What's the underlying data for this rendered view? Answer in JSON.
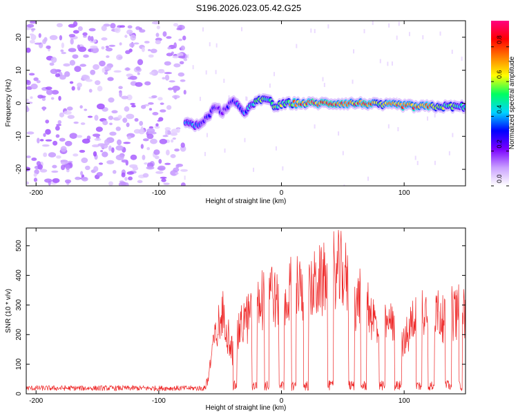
{
  "title": "S196.2026.023.05.42.G25",
  "chart_data": [
    {
      "type": "heatmap",
      "name": "spectrogram",
      "xlabel": "Height of straight line (km)",
      "ylabel": "Frequency (Hz)",
      "xlim": [
        -208,
        150
      ],
      "ylim": [
        -25,
        25
      ],
      "xticks": [
        -200,
        -100,
        0,
        100
      ],
      "yticks": [
        -20,
        -10,
        0,
        10,
        20
      ],
      "colorbar": {
        "label": "Normalized spectral amplitude",
        "range": [
          0.0,
          0.95
        ],
        "ticks": [
          0.0,
          0.2,
          0.4,
          0.6,
          0.8
        ],
        "colors": [
          "#ffffff",
          "#c9a0ff",
          "#7a00ff",
          "#0000ff",
          "#00d4ff",
          "#00ff60",
          "#ffff00",
          "#ff8000",
          "#ff0000",
          "#ff0080"
        ]
      },
      "noise_region_x": [
        -208,
        -78
      ],
      "ridge": [
        {
          "x": -78,
          "f": -5.5,
          "a": 0.4
        },
        {
          "x": -70,
          "f": -7.0,
          "a": 0.45
        },
        {
          "x": -62,
          "f": -5.0,
          "a": 0.35
        },
        {
          "x": -55,
          "f": -1.5,
          "a": 0.3
        },
        {
          "x": -48,
          "f": -2.5,
          "a": 0.3
        },
        {
          "x": -40,
          "f": 0.5,
          "a": 0.35
        },
        {
          "x": -30,
          "f": -2.5,
          "a": 0.4
        },
        {
          "x": -20,
          "f": 0.5,
          "a": 0.6
        },
        {
          "x": -12,
          "f": 1.5,
          "a": 0.55
        },
        {
          "x": -5,
          "f": -1.0,
          "a": 0.6
        },
        {
          "x": 5,
          "f": 0.0,
          "a": 0.7
        },
        {
          "x": 15,
          "f": 0.0,
          "a": 0.8
        },
        {
          "x": 25,
          "f": 0.0,
          "a": 0.9
        },
        {
          "x": 40,
          "f": 0.0,
          "a": 0.85
        },
        {
          "x": 55,
          "f": 0.0,
          "a": 0.8
        },
        {
          "x": 68,
          "f": 0.0,
          "a": 0.85
        },
        {
          "x": 80,
          "f": -0.5,
          "a": 0.75
        },
        {
          "x": 95,
          "f": -0.5,
          "a": 0.8
        },
        {
          "x": 110,
          "f": -1.0,
          "a": 0.9
        },
        {
          "x": 122,
          "f": -1.0,
          "a": 0.85
        },
        {
          "x": 135,
          "f": -1.0,
          "a": 0.6
        },
        {
          "x": 150,
          "f": -1.0,
          "a": 0.5
        }
      ]
    },
    {
      "type": "line",
      "name": "snr",
      "xlabel": "Height of straight line (km)",
      "ylabel": "SNR (10 * v/v)",
      "xlim": [
        -208,
        150
      ],
      "ylim": [
        0,
        560
      ],
      "xticks": [
        -200,
        -100,
        0,
        100
      ],
      "yticks": [
        0,
        100,
        200,
        300,
        400,
        500
      ],
      "color": "#ee2222",
      "noise_level": 20,
      "envelope": [
        {
          "x": -208,
          "y": 20
        },
        {
          "x": -65,
          "y": 25
        },
        {
          "x": -60,
          "y": 60
        },
        {
          "x": -55,
          "y": 220
        },
        {
          "x": -48,
          "y": 330
        },
        {
          "x": -40,
          "y": 200
        },
        {
          "x": -30,
          "y": 310
        },
        {
          "x": -20,
          "y": 360
        },
        {
          "x": -10,
          "y": 470
        },
        {
          "x": 0,
          "y": 330
        },
        {
          "x": 10,
          "y": 470
        },
        {
          "x": 20,
          "y": 420
        },
        {
          "x": 30,
          "y": 460
        },
        {
          "x": 40,
          "y": 520
        },
        {
          "x": 50,
          "y": 510
        },
        {
          "x": 60,
          "y": 400
        },
        {
          "x": 70,
          "y": 380
        },
        {
          "x": 80,
          "y": 250
        },
        {
          "x": 90,
          "y": 310
        },
        {
          "x": 95,
          "y": 330
        },
        {
          "x": 100,
          "y": 200
        },
        {
          "x": 110,
          "y": 360
        },
        {
          "x": 120,
          "y": 370
        },
        {
          "x": 130,
          "y": 330
        },
        {
          "x": 140,
          "y": 350
        },
        {
          "x": 150,
          "y": 340
        }
      ],
      "dropouts": [
        {
          "x": -38,
          "w": 3
        },
        {
          "x": -22,
          "w": 4
        },
        {
          "x": -12,
          "w": 4
        },
        {
          "x": 0,
          "w": 4
        },
        {
          "x": 10,
          "w": 4
        },
        {
          "x": 20,
          "w": 4
        },
        {
          "x": 40,
          "w": 5
        },
        {
          "x": 57,
          "w": 5
        },
        {
          "x": 67,
          "w": 5
        },
        {
          "x": 82,
          "w": 5
        },
        {
          "x": 95,
          "w": 6
        },
        {
          "x": 112,
          "w": 5
        },
        {
          "x": 122,
          "w": 5
        },
        {
          "x": 136,
          "w": 5
        },
        {
          "x": 146,
          "w": 3
        }
      ]
    }
  ]
}
